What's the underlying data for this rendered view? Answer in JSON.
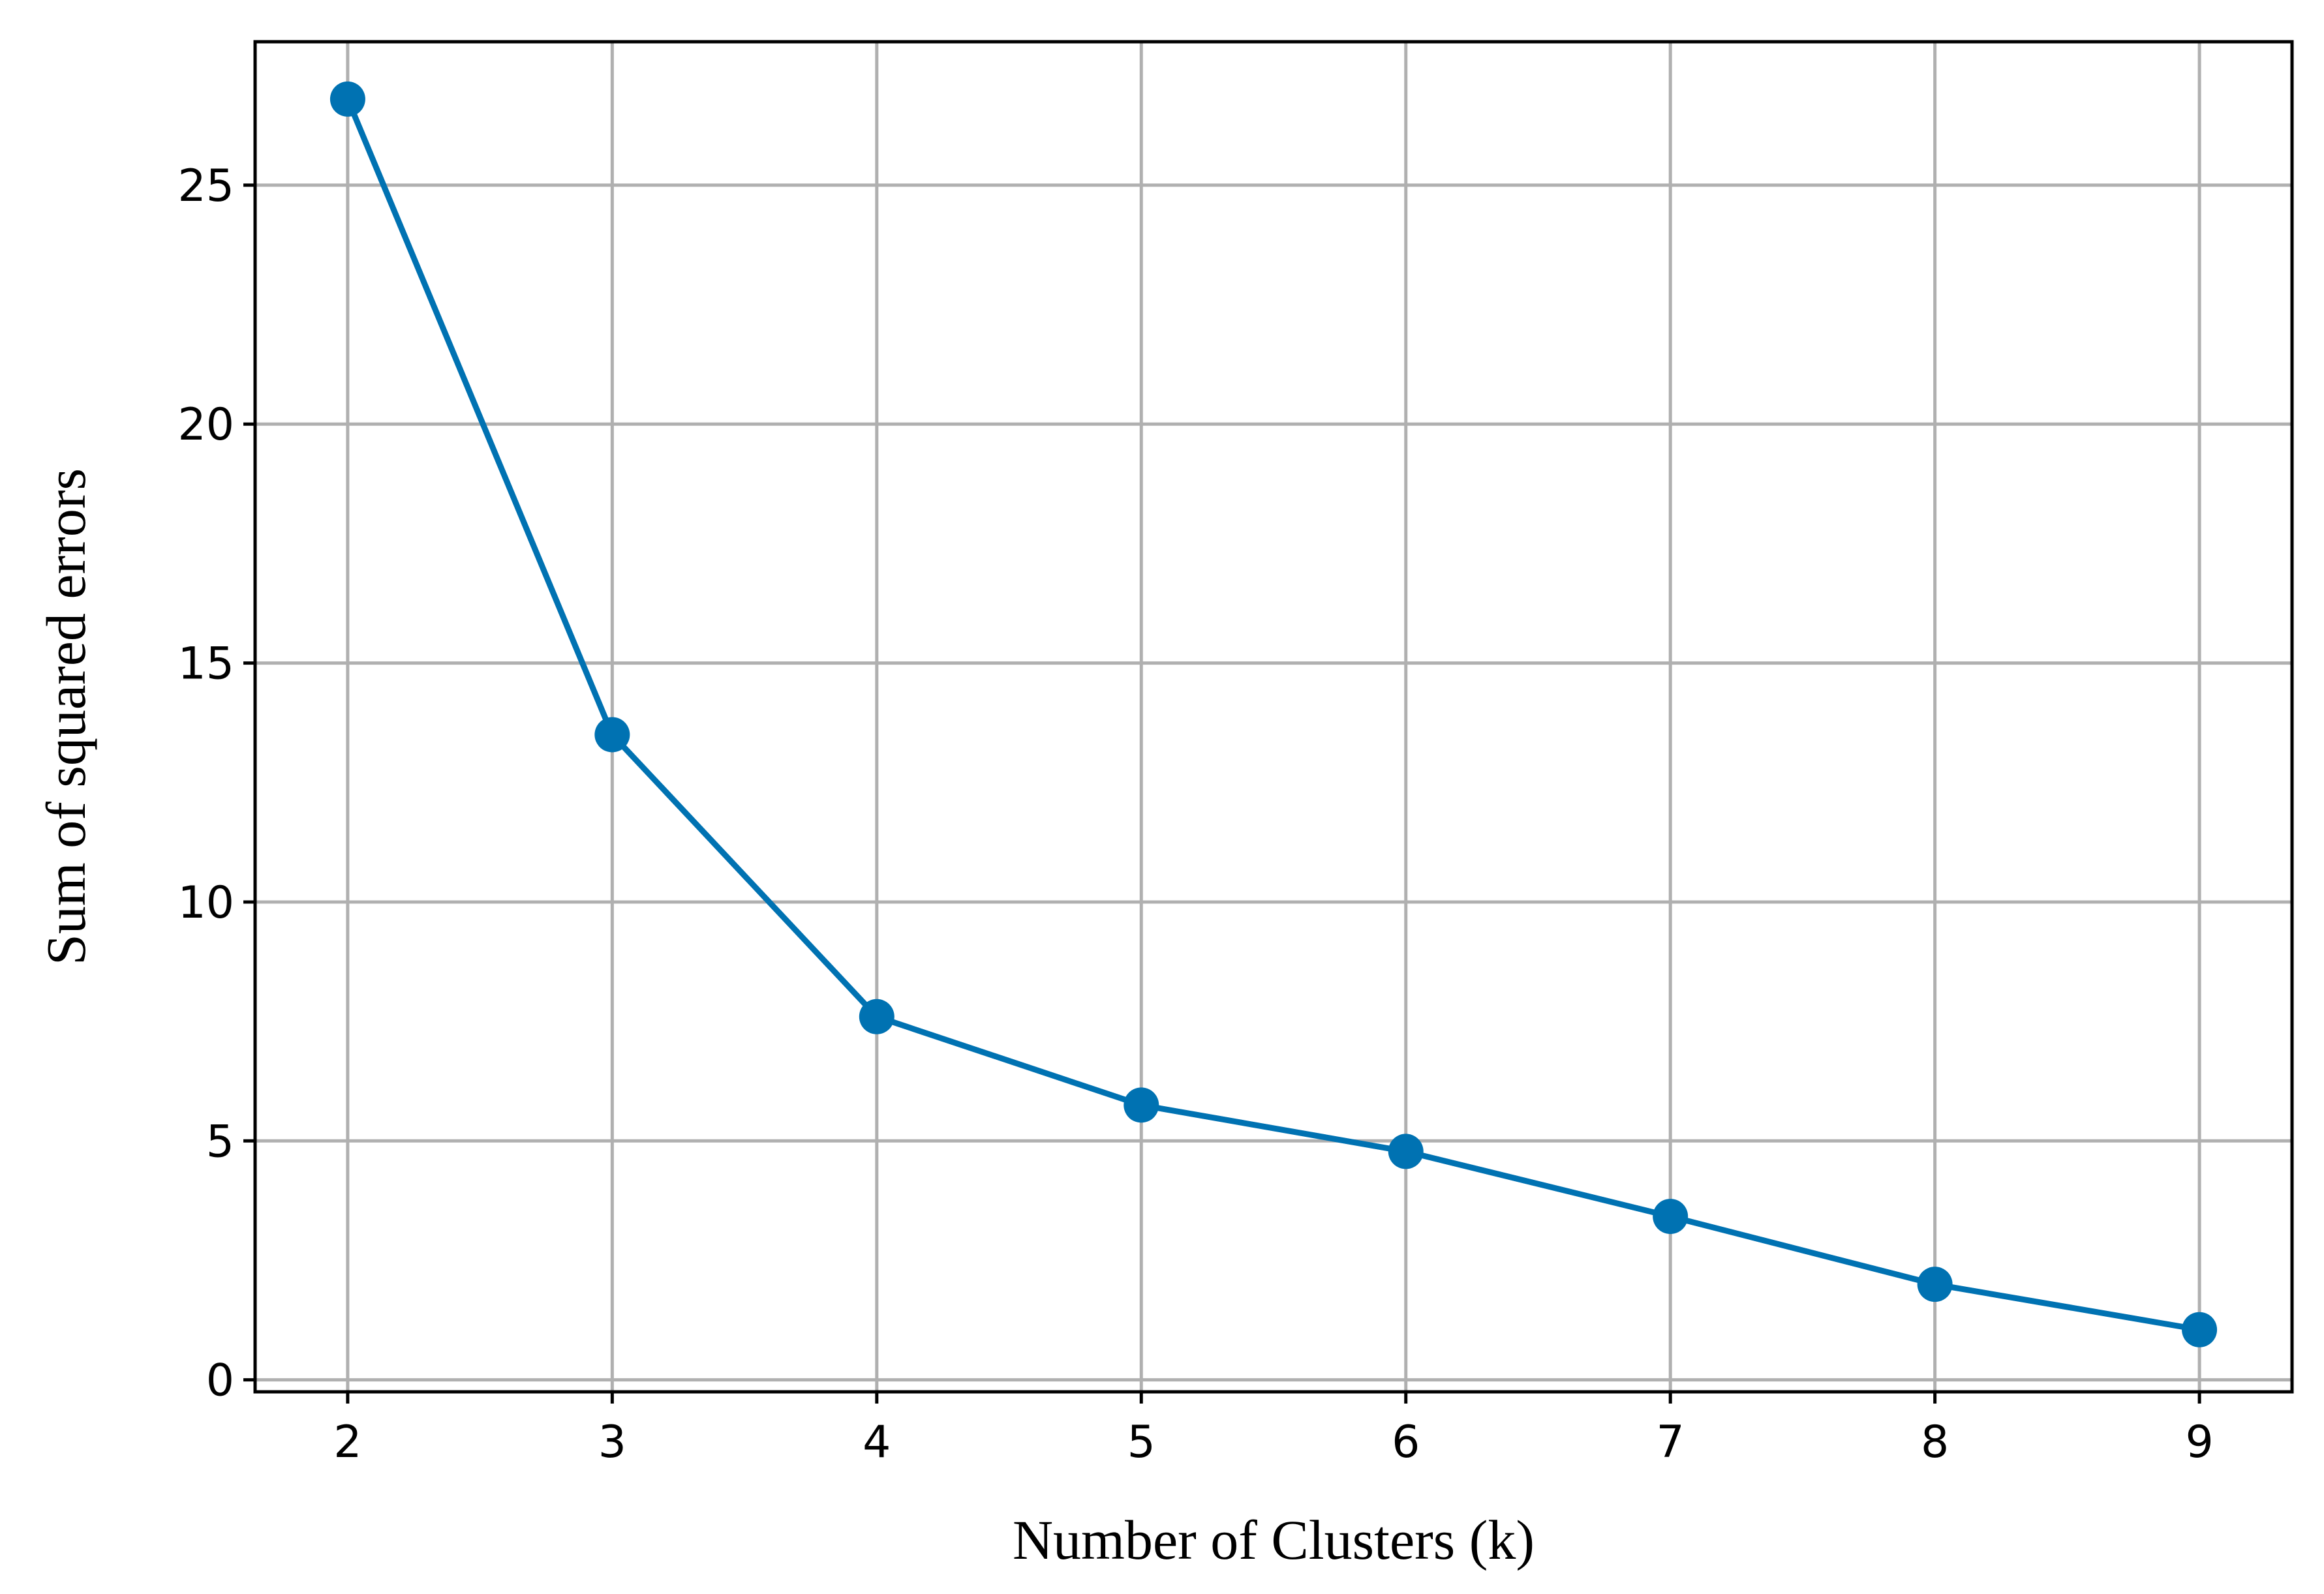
{
  "chart_data": {
    "type": "line",
    "title": "",
    "xlabel": "Number of Clusters (k)",
    "ylabel": "Sum of squared errors",
    "x": [
      2,
      3,
      4,
      5,
      6,
      7,
      8,
      9
    ],
    "series": [
      {
        "values": [
          26.8,
          13.5,
          7.6,
          5.75,
          4.78,
          3.42,
          2.0,
          1.05
        ],
        "color": "#0072B2",
        "marker": "circle"
      }
    ],
    "xlim": [
      1.65,
      9.35
    ],
    "ylim": [
      -0.25,
      28.0
    ],
    "xticks": [
      "2",
      "3",
      "4",
      "5",
      "6",
      "7",
      "8",
      "9"
    ],
    "yticks": [
      "0",
      "5",
      "10",
      "15",
      "20",
      "25"
    ],
    "grid": true,
    "legend": "none"
  }
}
